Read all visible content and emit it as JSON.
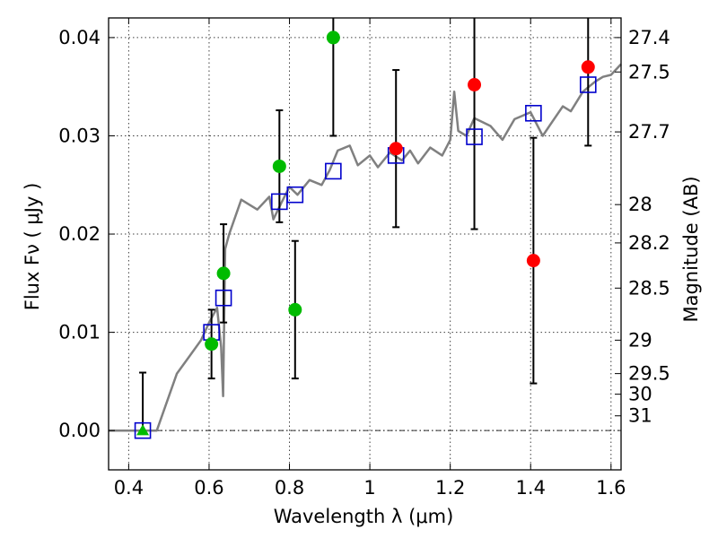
{
  "chart_data": {
    "type": "scatter",
    "xlabel": "Wavelength  λ (μm)",
    "ylabel": "Flux  Fν  ( μJy )",
    "y2label": "Magnitude (AB)",
    "xlim": [
      0.35,
      1.625
    ],
    "ylim": [
      -0.004,
      0.042
    ],
    "xticks": [
      0.4,
      0.6,
      0.8,
      1.0,
      1.2,
      1.4,
      1.6
    ],
    "xtick_labels": [
      "0.4",
      "0.6",
      "0.8",
      "1",
      "1.2",
      "1.4",
      "1.6"
    ],
    "yticks": [
      0.0,
      0.01,
      0.02,
      0.03,
      0.04
    ],
    "ytick_labels": [
      "0.00",
      "0.01",
      "0.02",
      "0.03",
      "0.04"
    ],
    "mag_ticks": [
      {
        "label": "27.4",
        "flux": 0.04
      },
      {
        "label": "27.5",
        "flux": 0.0365
      },
      {
        "label": "27.7",
        "flux": 0.0304
      },
      {
        "label": "28",
        "flux": 0.023
      },
      {
        "label": "28.2",
        "flux": 0.0191
      },
      {
        "label": "28.5",
        "flux": 0.0145
      },
      {
        "label": "29",
        "flux": 0.0092
      },
      {
        "label": "29.5",
        "flux": 0.0058
      },
      {
        "label": "30",
        "flux": 0.0037
      },
      {
        "label": "31",
        "flux": 0.0015
      }
    ],
    "grid": true,
    "zero_line": true,
    "colors": {
      "green": "#00bb00",
      "red": "#ff0000",
      "blue": "#0000cc",
      "model": "#808080"
    },
    "series": [
      {
        "marker": "circle-green",
        "points": [
          {
            "x": 0.606,
            "y": 0.0088,
            "yerr": [
              0.0035,
              0.0035
            ]
          },
          {
            "x": 0.636,
            "y": 0.016,
            "yerr": [
              0.005,
              0.005
            ]
          },
          {
            "x": 0.775,
            "y": 0.0269,
            "yerr": [
              0.0057,
              0.0057
            ]
          },
          {
            "x": 0.814,
            "y": 0.0123,
            "yerr": [
              0.007,
              0.007
            ]
          },
          {
            "x": 0.909,
            "y": 0.04,
            "yerr": [
              0.01,
              0.01
            ]
          }
        ]
      },
      {
        "marker": "circle-red",
        "points": [
          {
            "x": 1.065,
            "y": 0.0287,
            "yerr": [
              0.008,
              0.008
            ]
          },
          {
            "x": 1.26,
            "y": 0.0352,
            "yerr": [
              0.0147,
              0.0147
            ]
          },
          {
            "x": 1.407,
            "y": 0.0173,
            "yerr": [
              0.0125,
              0.0125
            ]
          },
          {
            "x": 1.543,
            "y": 0.037,
            "yerr": [
              0.008,
              0.008
            ]
          }
        ]
      },
      {
        "marker": "triangle-green",
        "points": [
          {
            "x": 0.435,
            "y": 0.0,
            "yerr": [
              0.0,
              0.0059
            ]
          }
        ]
      },
      {
        "marker": "square-blue",
        "points": [
          {
            "x": 0.435,
            "y": 0.0
          },
          {
            "x": 0.606,
            "y": 0.01
          },
          {
            "x": 0.636,
            "y": 0.0135
          },
          {
            "x": 0.775,
            "y": 0.0233
          },
          {
            "x": 0.814,
            "y": 0.024
          },
          {
            "x": 0.909,
            "y": 0.0264
          },
          {
            "x": 1.065,
            "y": 0.028
          },
          {
            "x": 1.26,
            "y": 0.0299
          },
          {
            "x": 1.407,
            "y": 0.0323
          },
          {
            "x": 1.543,
            "y": 0.0352
          }
        ]
      },
      {
        "marker": "model-line",
        "x": [
          0.35,
          0.4,
          0.45,
          0.47,
          0.5,
          0.52,
          0.55,
          0.58,
          0.6,
          0.62,
          0.63,
          0.635,
          0.64,
          0.65,
          0.68,
          0.7,
          0.72,
          0.75,
          0.76,
          0.78,
          0.8,
          0.82,
          0.85,
          0.88,
          0.9,
          0.92,
          0.95,
          0.97,
          1.0,
          1.02,
          1.05,
          1.08,
          1.1,
          1.12,
          1.15,
          1.18,
          1.2,
          1.21,
          1.22,
          1.24,
          1.26,
          1.3,
          1.33,
          1.36,
          1.4,
          1.43,
          1.45,
          1.48,
          1.5,
          1.53,
          1.56,
          1.58,
          1.6,
          1.625
        ],
        "y": [
          0.0,
          0.0,
          0.0,
          0.0,
          0.0035,
          0.0058,
          0.0075,
          0.0092,
          0.011,
          0.0125,
          0.0085,
          0.0035,
          0.0185,
          0.02,
          0.0235,
          0.023,
          0.0225,
          0.0238,
          0.0215,
          0.0232,
          0.0248,
          0.024,
          0.0255,
          0.025,
          0.0265,
          0.0285,
          0.029,
          0.027,
          0.028,
          0.0268,
          0.0283,
          0.0275,
          0.0285,
          0.0272,
          0.0288,
          0.028,
          0.0296,
          0.0345,
          0.0305,
          0.03,
          0.0318,
          0.031,
          0.0296,
          0.0317,
          0.0324,
          0.03,
          0.0312,
          0.033,
          0.0325,
          0.0345,
          0.0355,
          0.036,
          0.0362,
          0.0373
        ]
      }
    ]
  }
}
